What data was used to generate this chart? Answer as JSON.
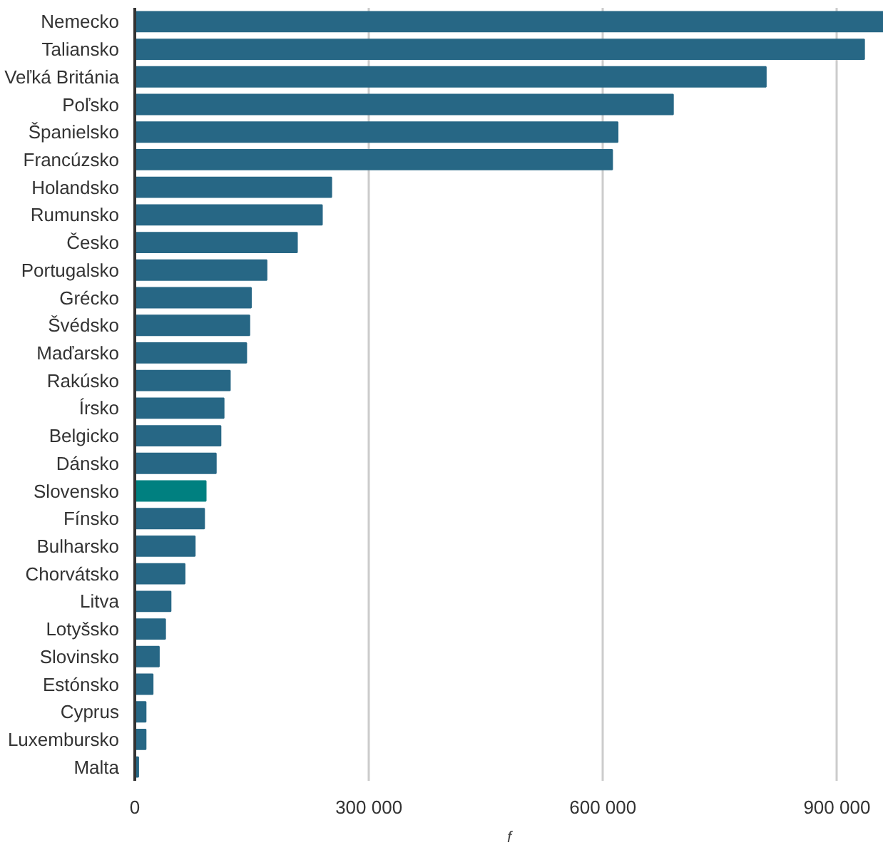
{
  "chart_data": {
    "type": "bar",
    "orientation": "horizontal",
    "xlabel": "f",
    "categories": [
      "Nemecko",
      "Taliansko",
      "Veľká Británia",
      "Poľsko",
      "Španielsko",
      "Francúzsko",
      "Holandsko",
      "Rumunsko",
      "Česko",
      "Portugalsko",
      "Grécko",
      "Švédsko",
      "Maďarsko",
      "Rakúsko",
      "Írsko",
      "Belgicko",
      "Dánsko",
      "Slovensko",
      "Fínsko",
      "Bulharsko",
      "Chorvátsko",
      "Litva",
      "Lotyšsko",
      "Slovinsko",
      "Estónsko",
      "Cyprus",
      "Luxembursko",
      "Malta"
    ],
    "values": [
      959000,
      935000,
      809000,
      690000,
      619000,
      612000,
      252000,
      240000,
      208000,
      169000,
      149000,
      147000,
      143000,
      122000,
      114000,
      110000,
      104000,
      91000,
      89000,
      77000,
      64000,
      46000,
      39000,
      31000,
      23000,
      14000,
      14000,
      4500
    ],
    "colors": [
      "#276785",
      "#276785",
      "#276785",
      "#276785",
      "#276785",
      "#276785",
      "#276785",
      "#276785",
      "#276785",
      "#276785",
      "#276785",
      "#276785",
      "#276785",
      "#276785",
      "#276785",
      "#276785",
      "#276785",
      "#008080",
      "#276785",
      "#276785",
      "#276785",
      "#276785",
      "#276785",
      "#276785",
      "#276785",
      "#276785",
      "#276785",
      "#276785"
    ],
    "xlim": [
      0,
      960000
    ],
    "xticks": [
      {
        "value": 0,
        "label": "0"
      },
      {
        "value": 300000,
        "label": "300 000"
      },
      {
        "value": 600000,
        "label": "600 000"
      },
      {
        "value": 900000,
        "label": "900 000"
      }
    ],
    "grid": "x"
  }
}
